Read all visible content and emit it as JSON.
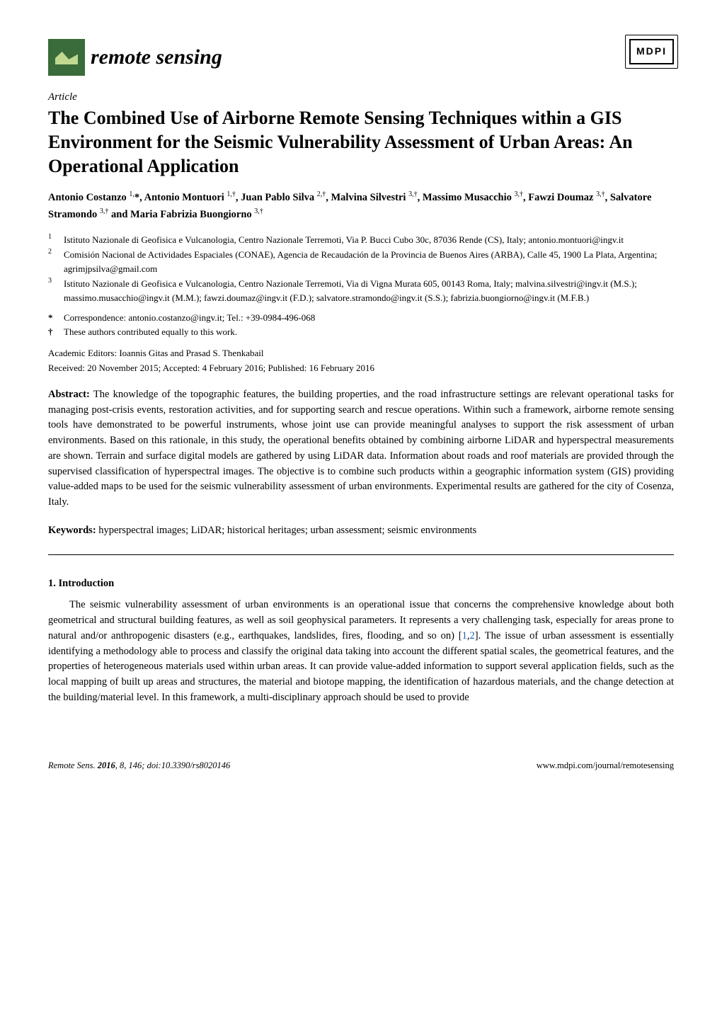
{
  "header": {
    "journal_name": "remote sensing",
    "publisher_logo": "MDPI"
  },
  "article": {
    "type": "Article",
    "title": "The Combined Use of Airborne Remote Sensing Techniques within a GIS Environment for the Seismic Vulnerability Assessment of Urban Areas: An Operational Application",
    "authors_html": "Antonio Costanzo <sup>1,</sup>*, Antonio Montuori <sup>1,†</sup>, Juan Pablo Silva <sup>2,†</sup>, Malvina Silvestri <sup>3,†</sup>, Massimo Musacchio <sup>3,†</sup>, Fawzi Doumaz <sup>3,†</sup>, Salvatore Stramondo <sup>3,†</sup> and Maria Fabrizia Buongiorno <sup>3,†</sup>",
    "affiliations": [
      {
        "num": "1",
        "text": "Istituto Nazionale di Geofisica e Vulcanologia, Centro Nazionale Terremoti, Via P. Bucci Cubo 30c, 87036 Rende (CS), Italy; antonio.montuori@ingv.it"
      },
      {
        "num": "2",
        "text": "Comisión Nacional de Actividades Espaciales (CONAE), Agencia de Recaudación de la Provincia de Buenos Aires (ARBA), Calle 45, 1900 La Plata, Argentina; agrimjpsilva@gmail.com"
      },
      {
        "num": "3",
        "text": "Istituto Nazionale di Geofisica e Vulcanologia, Centro Nazionale Terremoti, Via di Vigna Murata 605, 00143 Roma, Italy; malvina.silvestri@ingv.it (M.S.); massimo.musacchio@ingv.it (M.M.); fawzi.doumaz@ingv.it (F.D.); salvatore.stramondo@ingv.it (S.S.); fabrizia.buongiorno@ingv.it (M.F.B.)"
      }
    ],
    "correspondence": {
      "marker": "*",
      "text": "Correspondence: antonio.costanzo@ingv.it; Tel.: +39-0984-496-068"
    },
    "contrib": {
      "marker": "†",
      "text": "These authors contributed equally to this work."
    },
    "editors": "Academic Editors: Ioannis Gitas and Prasad S. Thenkabail",
    "dates": "Received: 20 November 2015; Accepted: 4 February 2016; Published: 16 February 2016",
    "abstract_label": "Abstract:",
    "abstract": " The knowledge of the topographic features, the building properties, and the road infrastructure settings are relevant operational tasks for managing post-crisis events, restoration activities, and for supporting search and rescue operations. Within such a framework, airborne remote sensing tools have demonstrated to be powerful instruments, whose joint use can provide meaningful analyses to support the risk assessment of urban environments. Based on this rationale, in this study, the operational benefits obtained by combining airborne LiDAR and hyperspectral measurements are shown. Terrain and surface digital models are gathered by using LiDAR data. Information about roads and roof materials are provided through the supervised classification of hyperspectral images. The objective is to combine such products within a geographic information system (GIS) providing value-added maps to be used for the seismic vulnerability assessment of urban environments. Experimental results are gathered for the city of Cosenza, Italy.",
    "keywords_label": "Keywords:",
    "keywords": " hyperspectral images; LiDAR; historical heritages; urban assessment; seismic environments"
  },
  "section1": {
    "heading": "1. Introduction",
    "body_html": "The seismic vulnerability assessment of urban environments is an operational issue that concerns the comprehensive knowledge about both geometrical and structural building features, as well as soil geophysical parameters. It represents a very challenging task, especially for areas prone to natural and/or anthropogenic disasters (e.g., earthquakes, landslides, fires, flooding, and so on) [<span class=\"ref-link\">1</span>,<span class=\"ref-link\">2</span>]. The issue of urban assessment is essentially identifying a methodology able to process and classify the original data taking into account the different spatial scales, the geometrical features, and the properties of heterogeneous materials used within urban areas. It can provide value-added information to support several application fields, such as the local mapping of built up areas and structures, the material and biotope mapping, the identification of hazardous materials, and the change detection at the building/material level. In this framework, a multi-disciplinary approach should be used to provide"
  },
  "footer": {
    "left": "Remote Sens. 2016, 8, 146; doi:10.3390/rs8020146",
    "right": "www.mdpi.com/journal/remotesensing"
  }
}
